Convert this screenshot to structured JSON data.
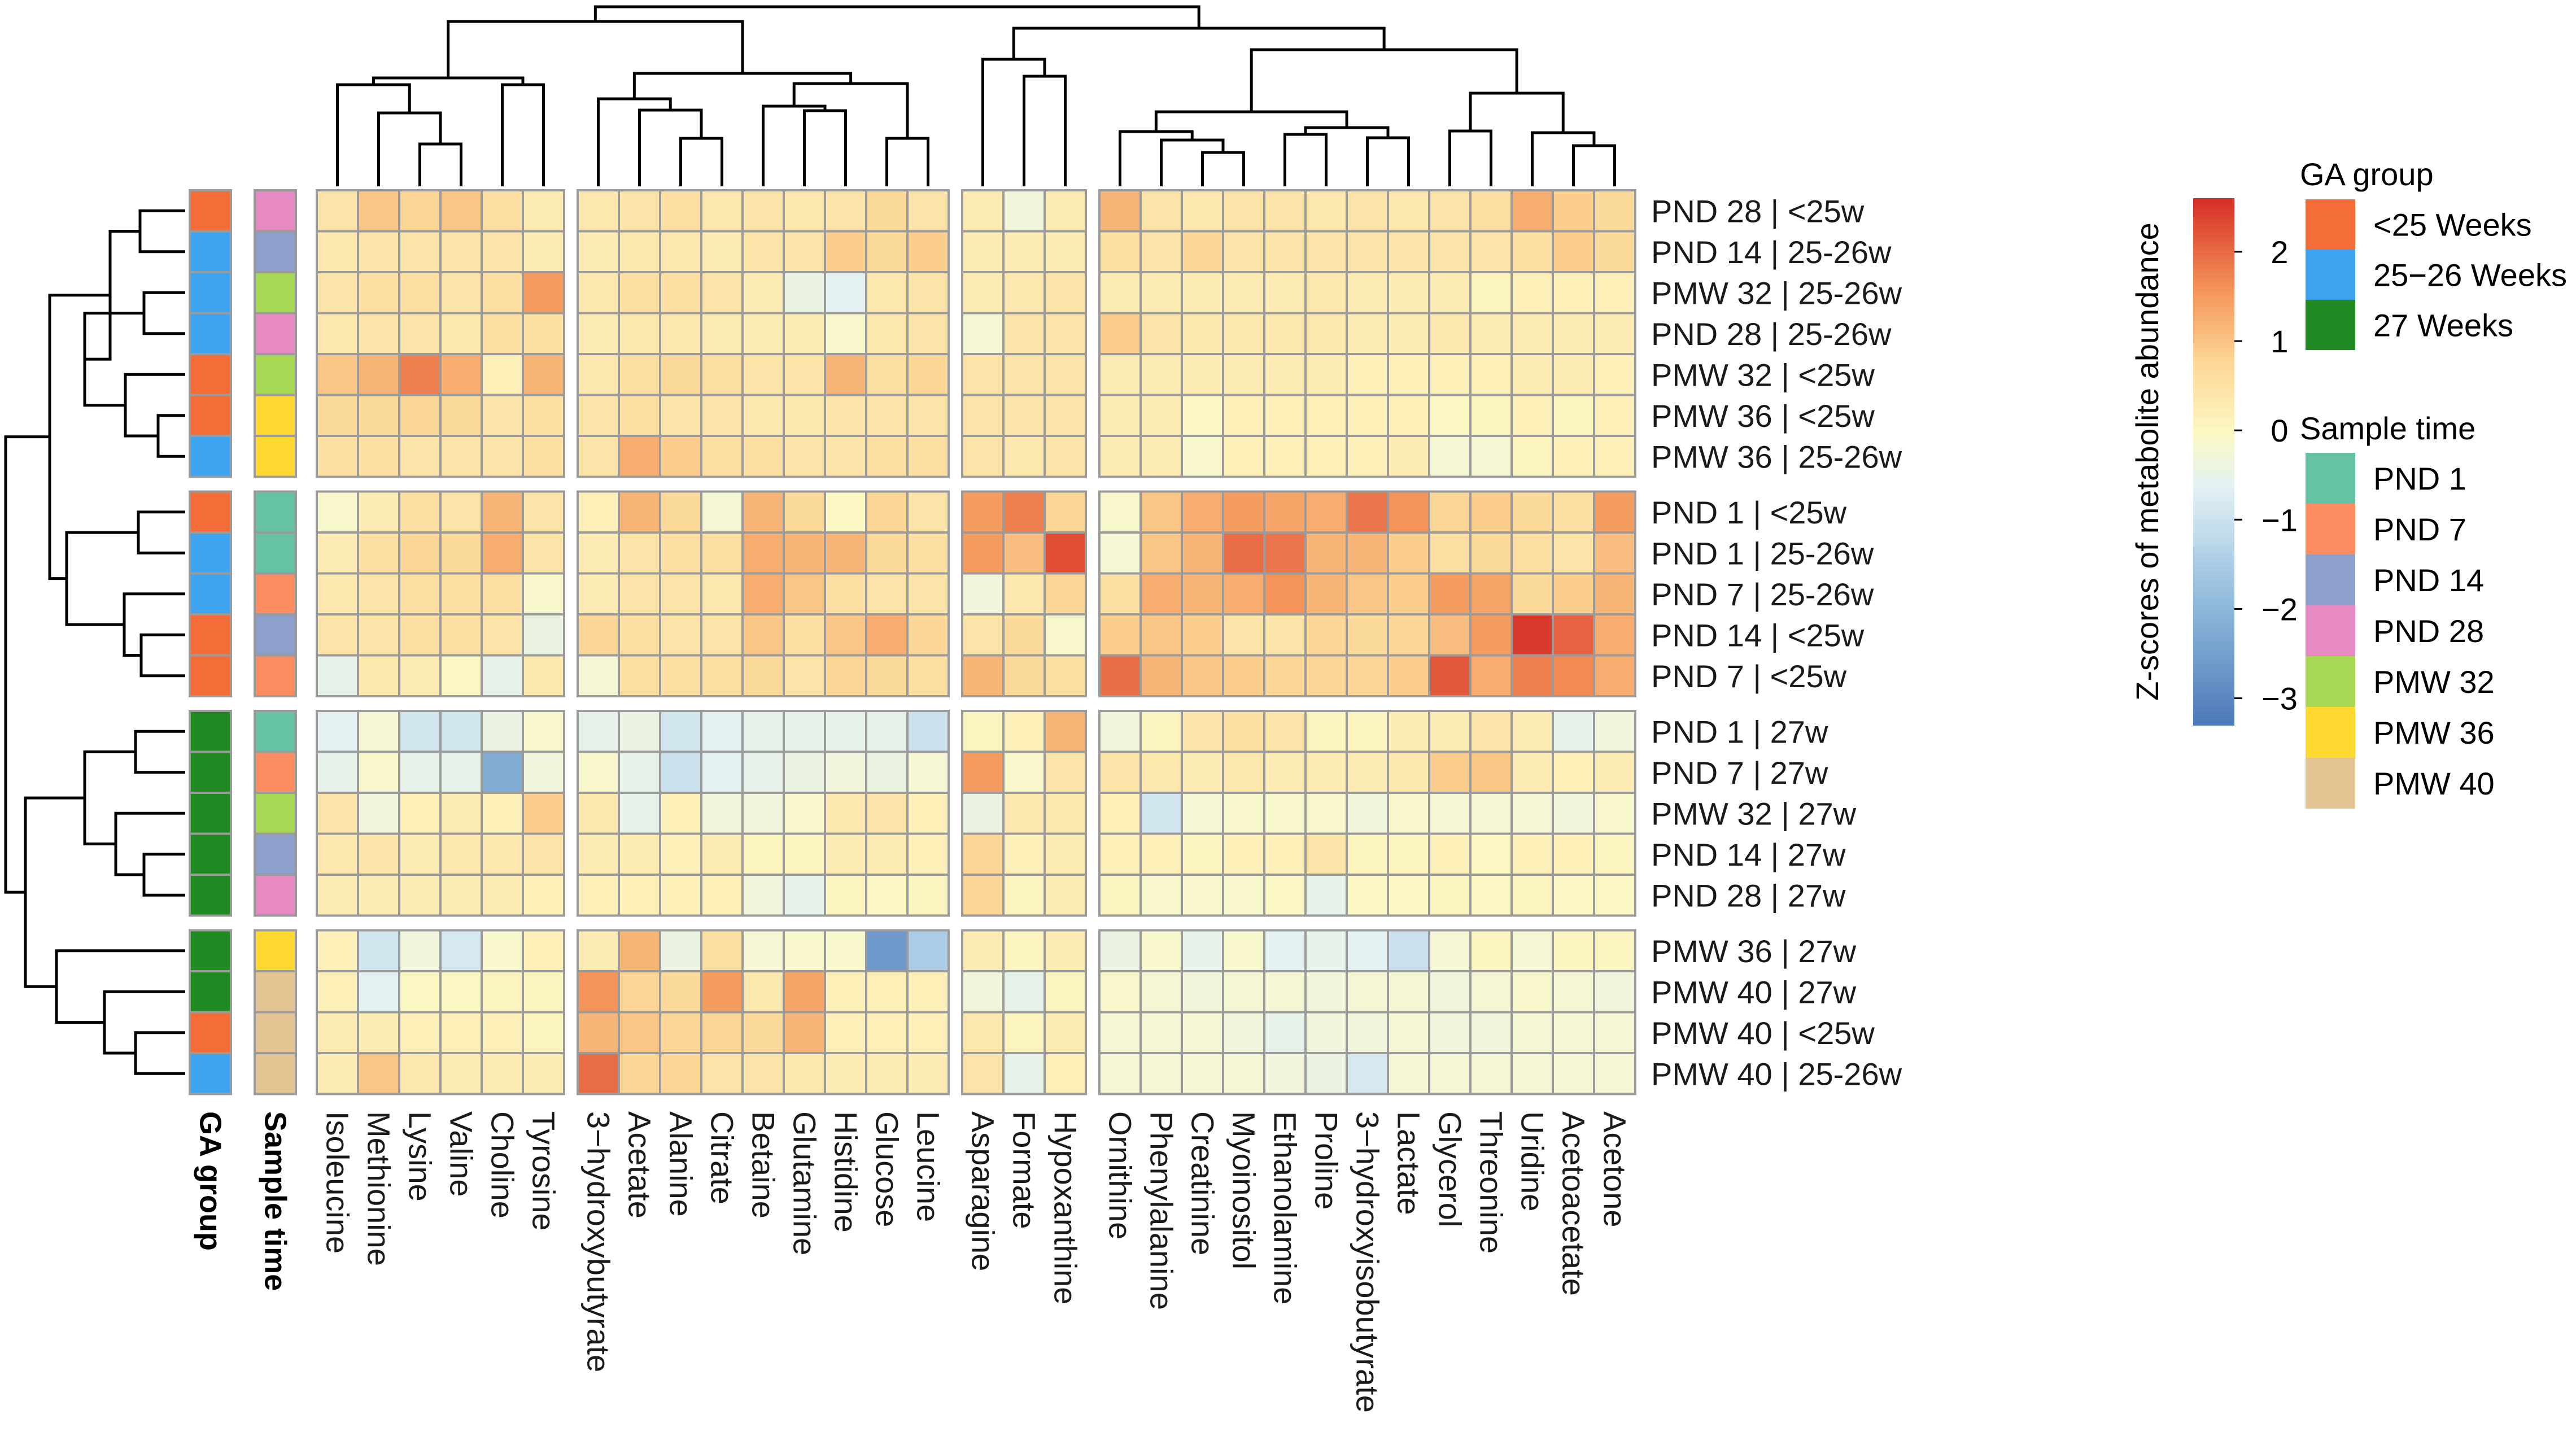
{
  "chart_data": {
    "type": "heatmap",
    "title": "",
    "columns": [
      "Isoleucine",
      "Methionine",
      "Lysine",
      "Valine",
      "Choline",
      "Tyrosine",
      "3−hydroxybutyrate",
      "Acetate",
      "Alanine",
      "Citrate",
      "Betaine",
      "Glutamine",
      "Histidine",
      "Glucose",
      "Leucine",
      "Asparagine",
      "Formate",
      "Hypoxanthine",
      "Ornithine",
      "Phenylalanine",
      "Creatinine",
      "Myoinositol",
      "Ethanolamine",
      "Proline",
      "3−hydroxyisobutyrate",
      "Lactate",
      "Glycerol",
      "Threonine",
      "Uridine",
      "Acetoacetate",
      "Acetone"
    ],
    "column_groups": [
      6,
      9,
      3,
      13
    ],
    "rows": [
      "PND 28 | <25w",
      "PND 14 | 25-26w",
      "PMW 32 | 25-26w",
      "PND 28 | 25-26w",
      "PMW 32 | <25w",
      "PMW 36 | <25w",
      "PMW 36 | 25-26w",
      "PND 1 | <25w",
      "PND 1 | 25-26w",
      "PND 7 | 25-26w",
      "PND 14 | <25w",
      "PND 7 | <25w",
      "PND 1 | 27w",
      "PND 7 | 27w",
      "PMW 32 | 27w",
      "PND 14 | 27w",
      "PND 28 | 27w",
      "PMW 36 | 27w",
      "PMW 40 | 27w",
      "PMW 40 | <25w",
      "PMW 40 | 25-26w"
    ],
    "row_groups": [
      7,
      5,
      5,
      4
    ],
    "values": [
      [
        0.5,
        1.0,
        0.8,
        1.0,
        0.6,
        0.3,
        0.4,
        0.5,
        0.6,
        0.4,
        0.5,
        0.4,
        0.5,
        0.7,
        0.5,
        0.3,
        -0.3,
        0.3,
        1.2,
        0.5,
        0.4,
        0.5,
        0.5,
        0.4,
        0.5,
        0.4,
        0.5,
        0.6,
        1.3,
        0.9,
        0.7
      ],
      [
        0.4,
        0.5,
        0.5,
        0.5,
        0.5,
        0.3,
        0.3,
        0.4,
        0.4,
        0.3,
        0.5,
        0.5,
        0.9,
        0.7,
        0.9,
        0.3,
        0.3,
        0.3,
        0.6,
        0.5,
        0.8,
        0.5,
        0.5,
        0.5,
        0.5,
        0.5,
        0.5,
        0.5,
        0.6,
        0.9,
        0.7
      ],
      [
        0.5,
        0.6,
        0.6,
        0.5,
        0.6,
        1.5,
        0.4,
        0.6,
        0.6,
        0.5,
        0.3,
        -0.4,
        -0.6,
        0.4,
        0.5,
        0.3,
        0.4,
        0.5,
        0.3,
        0.3,
        0.3,
        0.3,
        0.3,
        0.4,
        0.3,
        0.3,
        0.3,
        0.1,
        0.2,
        0.2,
        0.2
      ],
      [
        0.4,
        0.5,
        0.5,
        0.4,
        0.6,
        0.6,
        0.3,
        0.4,
        0.4,
        0.3,
        0.3,
        0.3,
        -0.1,
        0.4,
        0.5,
        -0.2,
        0.5,
        0.5,
        0.9,
        0.5,
        0.4,
        0.4,
        0.4,
        0.4,
        0.3,
        0.3,
        0.4,
        0.3,
        0.3,
        0.3,
        0.3
      ],
      [
        1.0,
        1.2,
        1.8,
        1.3,
        0.2,
        1.2,
        0.4,
        0.6,
        0.7,
        0.6,
        0.5,
        0.5,
        1.2,
        0.6,
        0.8,
        0.5,
        0.5,
        0.5,
        0.3,
        0.3,
        0.3,
        0.3,
        0.3,
        0.3,
        0.2,
        0.2,
        0.2,
        0.2,
        0.3,
        0.3,
        0.2
      ],
      [
        0.7,
        0.7,
        0.8,
        0.7,
        0.5,
        0.6,
        0.5,
        0.6,
        0.5,
        0.5,
        0.4,
        0.4,
        0.5,
        0.5,
        0.5,
        0.5,
        0.5,
        0.5,
        0.3,
        0.3,
        0.0,
        0.2,
        0.2,
        0.2,
        0.2,
        0.2,
        0.0,
        0.1,
        0.2,
        0.1,
        0.2
      ],
      [
        0.6,
        0.6,
        0.5,
        0.5,
        0.5,
        0.6,
        0.5,
        1.3,
        0.9,
        0.6,
        0.6,
        0.5,
        0.5,
        0.6,
        0.6,
        0.5,
        0.4,
        0.5,
        0.3,
        0.3,
        -0.1,
        0.2,
        0.2,
        0.2,
        0.2,
        0.3,
        -0.2,
        -0.2,
        0.1,
        0.2,
        0.2
      ],
      [
        -0.1,
        0.3,
        0.6,
        0.5,
        1.2,
        0.5,
        0.2,
        1.2,
        0.7,
        -0.2,
        1.2,
        0.7,
        0.0,
        0.8,
        0.5,
        1.5,
        1.8,
        0.8,
        -0.1,
        1.0,
        1.3,
        1.5,
        1.4,
        1.3,
        1.9,
        1.6,
        0.8,
        0.9,
        0.7,
        0.6,
        1.5
      ],
      [
        0.3,
        0.6,
        0.8,
        0.7,
        1.3,
        0.5,
        0.3,
        0.5,
        0.6,
        0.6,
        1.3,
        1.2,
        1.2,
        0.7,
        0.6,
        1.5,
        1.1,
        2.3,
        -0.2,
        1.0,
        1.2,
        2.0,
        1.9,
        1.2,
        1.2,
        0.9,
        0.6,
        0.7,
        0.6,
        0.5,
        1.1
      ],
      [
        0.4,
        0.5,
        0.6,
        0.6,
        0.6,
        -0.1,
        0.3,
        0.5,
        0.5,
        0.4,
        1.3,
        1.0,
        0.6,
        0.5,
        0.5,
        -0.3,
        0.4,
        0.8,
        0.6,
        1.3,
        1.2,
        1.3,
        1.6,
        1.2,
        1.0,
        0.9,
        1.5,
        1.4,
        0.7,
        0.9,
        1.2
      ],
      [
        0.5,
        0.5,
        0.6,
        0.6,
        0.5,
        -0.4,
        0.8,
        0.6,
        0.5,
        0.5,
        1.0,
        0.6,
        1.0,
        1.3,
        0.8,
        0.5,
        0.7,
        -0.1,
        0.9,
        1.0,
        0.9,
        0.5,
        0.5,
        0.8,
        0.7,
        0.8,
        1.1,
        1.5,
        2.5,
        2.1,
        1.3
      ],
      [
        -0.5,
        0.4,
        0.3,
        0.0,
        -0.5,
        0.4,
        -0.2,
        0.6,
        0.6,
        0.6,
        0.7,
        0.5,
        0.8,
        0.7,
        0.6,
        1.2,
        0.7,
        0.6,
        2.0,
        1.2,
        1.0,
        0.9,
        0.8,
        0.8,
        0.8,
        0.9,
        2.2,
        1.3,
        1.8,
        1.7,
        1.3
      ],
      [
        -0.6,
        -0.2,
        -0.9,
        -0.9,
        -0.4,
        -0.1,
        -0.5,
        -0.4,
        -0.9,
        -0.6,
        -0.5,
        -0.5,
        -0.5,
        -0.5,
        -1.0,
        0.1,
        0.2,
        1.2,
        -0.3,
        0.1,
        0.5,
        0.6,
        0.5,
        0.1,
        0.1,
        0.3,
        0.3,
        0.5,
        0.3,
        -0.5,
        -0.3
      ],
      [
        -0.5,
        -0.1,
        -0.5,
        -0.5,
        -2.2,
        -0.3,
        -0.1,
        -0.5,
        -1.0,
        -0.6,
        -0.5,
        -0.4,
        -0.3,
        -0.4,
        -0.2,
        1.5,
        -0.1,
        0.5,
        0.5,
        0.4,
        0.3,
        0.4,
        0.3,
        0.3,
        0.3,
        0.4,
        0.9,
        1.0,
        0.3,
        0.2,
        0.3
      ],
      [
        0.5,
        -0.3,
        0.2,
        0.3,
        0.2,
        0.9,
        0.4,
        -0.5,
        0.2,
        -0.3,
        -0.3,
        -0.1,
        0.4,
        0.5,
        0.2,
        -0.4,
        0.4,
        0.4,
        0.2,
        -0.9,
        -0.2,
        -0.1,
        -0.1,
        -0.1,
        -0.3,
        -0.1,
        -0.2,
        -0.2,
        -0.2,
        -0.3,
        -0.1
      ],
      [
        0.4,
        0.5,
        0.3,
        0.4,
        0.4,
        0.5,
        0.3,
        0.3,
        0.2,
        0.3,
        0.1,
        0.1,
        0.3,
        0.3,
        0.2,
        0.8,
        0.2,
        0.3,
        0.2,
        0.2,
        0.1,
        0.2,
        0.2,
        0.5,
        0.1,
        0.1,
        0.2,
        0.0,
        0.2,
        0.2,
        0.1
      ],
      [
        0.3,
        0.3,
        0.3,
        0.3,
        0.3,
        0.2,
        0.2,
        0.2,
        0.2,
        0.2,
        -0.3,
        -0.5,
        0.1,
        0.0,
        0.1,
        0.8,
        0.1,
        0.3,
        0.1,
        -0.1,
        -0.1,
        -0.1,
        0.0,
        -0.5,
        0.0,
        0.0,
        0.1,
        0.0,
        0.1,
        0.0,
        0.0
      ],
      [
        0.2,
        -0.9,
        -0.3,
        -0.8,
        -0.1,
        0.2,
        0.3,
        1.2,
        -0.4,
        0.6,
        -0.2,
        -0.1,
        -0.1,
        -2.6,
        -1.5,
        0.3,
        0.1,
        0.3,
        -0.4,
        -0.1,
        -0.5,
        -0.1,
        -0.6,
        -0.5,
        -0.6,
        -1.0,
        -0.2,
        0.1,
        -0.2,
        0.1,
        0.1
      ],
      [
        0.2,
        -0.6,
        0.0,
        0.0,
        0.1,
        0.1,
        1.6,
        0.8,
        0.7,
        1.5,
        0.4,
        1.4,
        0.2,
        0.2,
        0.2,
        -0.3,
        -0.5,
        0.1,
        -0.1,
        -0.2,
        -0.3,
        -0.2,
        -0.2,
        -0.3,
        -0.2,
        -0.2,
        -0.3,
        -0.2,
        -0.1,
        -0.2,
        -0.3
      ],
      [
        0.3,
        0.3,
        0.2,
        0.2,
        0.2,
        0.1,
        1.2,
        1.0,
        0.8,
        0.8,
        0.7,
        1.2,
        0.2,
        0.2,
        0.2,
        0.4,
        0.1,
        0.3,
        -0.2,
        -0.2,
        -0.2,
        -0.3,
        -0.5,
        -0.3,
        -0.3,
        -0.2,
        -0.3,
        -0.3,
        -0.2,
        -0.2,
        -0.2
      ],
      [
        0.3,
        1.0,
        0.4,
        0.3,
        0.3,
        0.3,
        2.0,
        0.8,
        0.8,
        0.5,
        0.5,
        0.4,
        0.3,
        0.3,
        0.3,
        0.5,
        -0.5,
        0.2,
        -0.2,
        -0.2,
        -0.2,
        -0.2,
        -0.3,
        -0.4,
        -0.8,
        -0.2,
        -0.2,
        -0.2,
        -0.2,
        -0.2,
        -0.2
      ]
    ],
    "row_annotations": {
      "sample_time": [
        "PND 28",
        "PND 14",
        "PMW 32",
        "PND 28",
        "PMW 32",
        "PMW 36",
        "PMW 36",
        "PND 1",
        "PND 1",
        "PND 7",
        "PND 14",
        "PND 7",
        "PND 1",
        "PND 7",
        "PMW 32",
        "PND 14",
        "PND 28",
        "PMW 36",
        "PMW 40",
        "PMW 40",
        "PMW 40"
      ],
      "ga_group": [
        "<25 Weeks",
        "25−26 Weeks",
        "25−26 Weeks",
        "25−26 Weeks",
        "<25 Weeks",
        "<25 Weeks",
        "25−26 Weeks",
        "<25 Weeks",
        "25−26 Weeks",
        "25−26 Weeks",
        "<25 Weeks",
        "<25 Weeks",
        "27 Weeks",
        "27 Weeks",
        "27 Weeks",
        "27 Weeks",
        "27 Weeks",
        "27 Weeks",
        "27 Weeks",
        "<25 Weeks",
        "25−26 Weeks"
      ]
    },
    "annotation_labels": {
      "ga_group": "GA group",
      "sample_time": "Sample time"
    },
    "colorbar": {
      "title": "Z-scores of metabolite abundance",
      "range": [
        -3.3,
        2.6
      ],
      "ticks": [
        2,
        1,
        0,
        -1,
        -2,
        -3
      ],
      "tick_labels": [
        "2",
        "1",
        "0",
        "−1",
        "−2",
        "−3"
      ],
      "stops": [
        {
          "v": -3.3,
          "c": "#4a78b7"
        },
        {
          "v": -1.8,
          "c": "#97bfdf"
        },
        {
          "v": -0.6,
          "c": "#e3f1f3"
        },
        {
          "v": 0.0,
          "c": "#fcf8c4"
        },
        {
          "v": 0.8,
          "c": "#fcd695"
        },
        {
          "v": 1.6,
          "c": "#f4945a"
        },
        {
          "v": 2.6,
          "c": "#d73027"
        }
      ]
    },
    "legend_ga": {
      "title": "GA group",
      "items": [
        {
          "label": "<25 Weeks",
          "color": "#f46d37"
        },
        {
          "label": "25−26 Weeks",
          "color": "#3fa4f0"
        },
        {
          "label": "27 Weeks",
          "color": "#1f8a22"
        }
      ]
    },
    "legend_time": {
      "title": "Sample time",
      "items": [
        {
          "label": "PND 1",
          "color": "#66c2a5"
        },
        {
          "label": "PND 7",
          "color": "#fc8d62"
        },
        {
          "label": "PND 14",
          "color": "#8da0cb"
        },
        {
          "label": "PND 28",
          "color": "#e78ac3"
        },
        {
          "label": "PMW 32",
          "color": "#a6d854"
        },
        {
          "label": "PMW 36",
          "color": "#ffd92f"
        },
        {
          "label": "PMW 40",
          "color": "#e5c494"
        }
      ]
    }
  }
}
